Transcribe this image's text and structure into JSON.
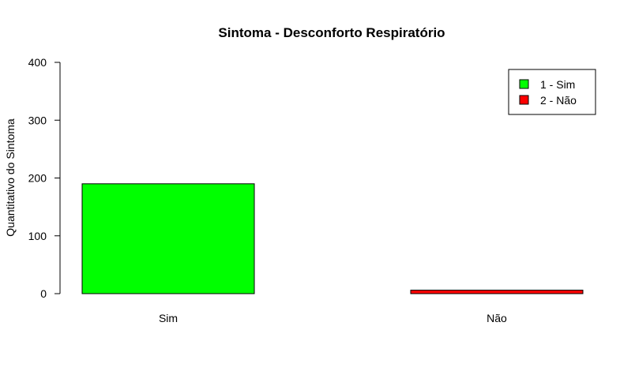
{
  "chart_data": {
    "type": "bar",
    "title": "Sintoma - Desconforto Respiratório",
    "xlabel": "",
    "ylabel": "Quantitativo do Sintoma",
    "categories": [
      "Sim",
      "Não"
    ],
    "values": [
      190,
      6
    ],
    "colors": [
      "#00ff00",
      "#ff0000"
    ],
    "ylim": [
      0,
      400
    ],
    "yticks": [
      "0",
      "100",
      "200",
      "300",
      "400"
    ],
    "grid": false,
    "legend": {
      "position": "top-right",
      "entries": [
        {
          "label": "1 - Sim",
          "color": "#00ff00"
        },
        {
          "label": "2 - Não",
          "color": "#ff0000"
        }
      ]
    }
  }
}
